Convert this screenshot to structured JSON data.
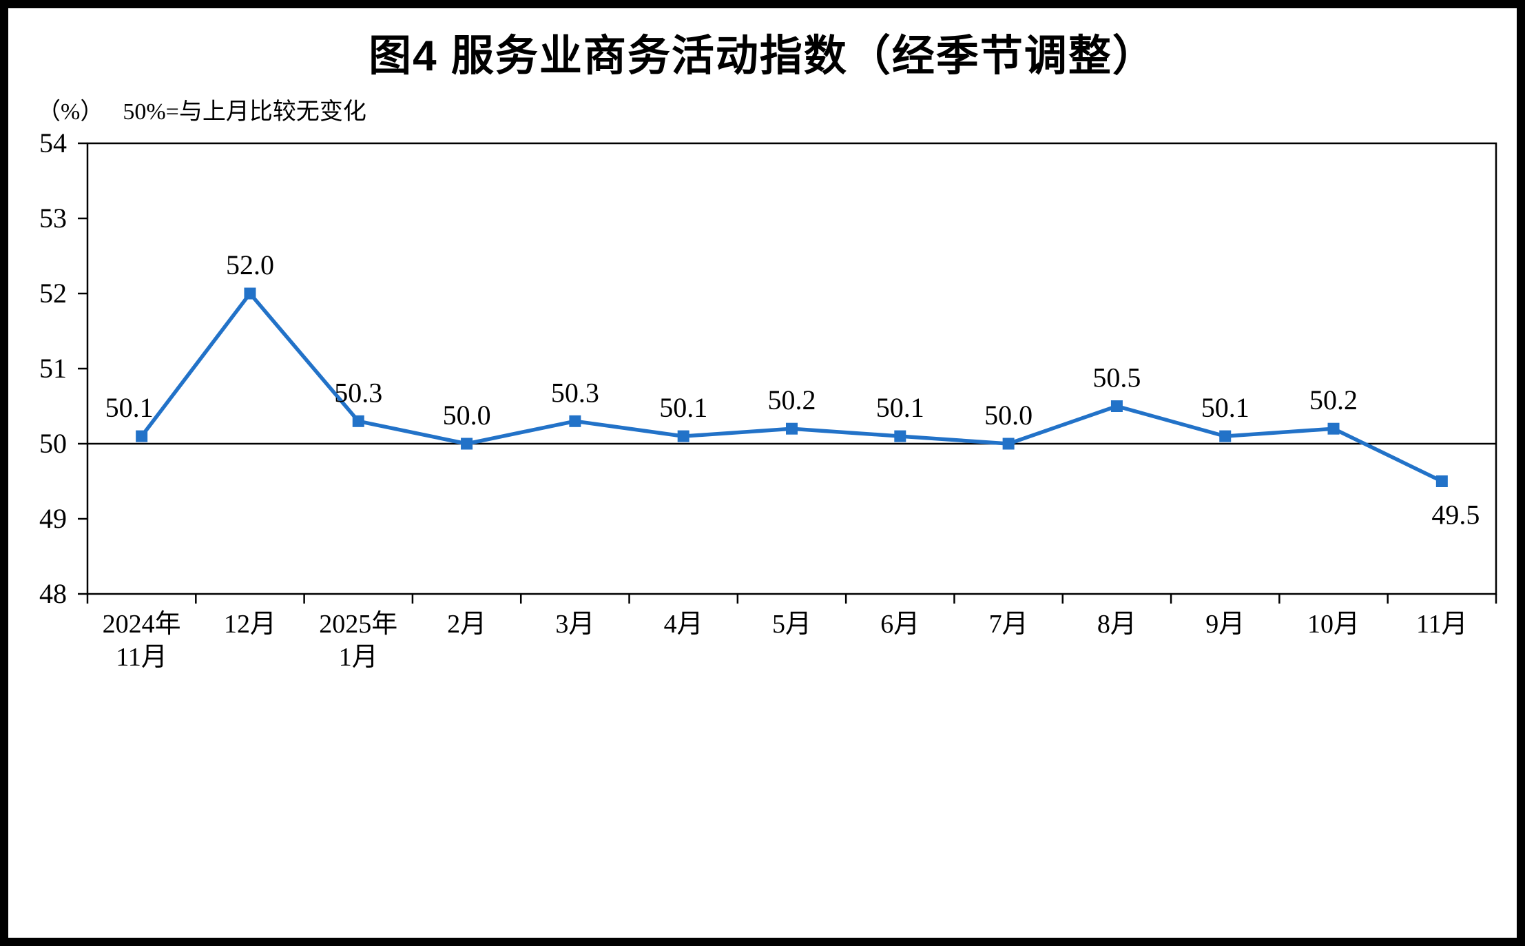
{
  "title": "图4  服务业商务活动指数（经季节调整）",
  "unit_label": "（%）",
  "subtitle": "50%=与上月比较无变化",
  "chart_data": {
    "type": "line",
    "title": "图4 服务业商务活动指数（经季节调整）",
    "ylabel": "%",
    "categories": [
      [
        "2024年",
        "11月"
      ],
      [
        "12月"
      ],
      [
        "2025年",
        "1月"
      ],
      [
        "2月"
      ],
      [
        "3月"
      ],
      [
        "4月"
      ],
      [
        "5月"
      ],
      [
        "6月"
      ],
      [
        "7月"
      ],
      [
        "8月"
      ],
      [
        "9月"
      ],
      [
        "10月"
      ],
      [
        "11月"
      ]
    ],
    "values": [
      50.1,
      52.0,
      50.3,
      50.0,
      50.3,
      50.1,
      50.2,
      50.1,
      50.0,
      50.5,
      50.1,
      50.2,
      49.5
    ],
    "data_labels": [
      "50.1",
      "52.0",
      "50.3",
      "50.0",
      "50.3",
      "50.1",
      "50.2",
      "50.1",
      "50.0",
      "50.5",
      "50.1",
      "50.2",
      "49.5"
    ],
    "ylim": [
      48,
      54
    ],
    "yticks": [
      "54",
      "53",
      "52",
      "51",
      "50",
      "49",
      "48"
    ],
    "reference_value": 50,
    "line_color": "#2272C8",
    "axis_color": "#000000",
    "marker": "square",
    "grid": false,
    "legend": "none"
  }
}
